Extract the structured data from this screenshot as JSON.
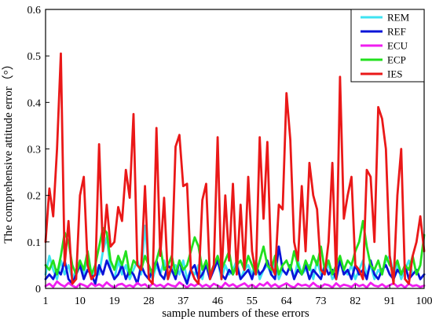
{
  "chart_data": {
    "type": "line",
    "title": "",
    "xlabel": "sample numbers of these errors",
    "ylabel": "The comprehensive attitude error（°）",
    "xlim": [
      1,
      100
    ],
    "ylim": [
      0,
      0.6
    ],
    "grid": false,
    "legend_position": "top-right",
    "x_ticks": [
      "1",
      "10",
      "19",
      "28",
      "37",
      "46",
      "55",
      "64",
      "73",
      "82",
      "91",
      "100"
    ],
    "y_ticks": [
      "0",
      "0.1",
      "0.2",
      "0.3",
      "0.4",
      "0.5",
      "0.6"
    ],
    "x": [
      1,
      2,
      3,
      4,
      5,
      6,
      7,
      8,
      9,
      10,
      11,
      12,
      13,
      14,
      15,
      16,
      17,
      18,
      19,
      20,
      21,
      22,
      23,
      24,
      25,
      26,
      27,
      28,
      29,
      30,
      31,
      32,
      33,
      34,
      35,
      36,
      37,
      38,
      39,
      40,
      41,
      42,
      43,
      44,
      45,
      46,
      47,
      48,
      49,
      50,
      51,
      52,
      53,
      54,
      55,
      56,
      57,
      58,
      59,
      60,
      61,
      62,
      63,
      64,
      65,
      66,
      67,
      68,
      69,
      70,
      71,
      72,
      73,
      74,
      75,
      76,
      77,
      78,
      79,
      80,
      81,
      82,
      83,
      84,
      85,
      86,
      87,
      88,
      89,
      90,
      91,
      92,
      93,
      94,
      95,
      96,
      97,
      98,
      99,
      100
    ],
    "series": [
      {
        "name": "REM",
        "color": "#3fe3f2",
        "values": [
          0.03,
          0.07,
          0.04,
          0.02,
          0.06,
          0.03,
          0.05,
          0.02,
          0.04,
          0.06,
          0.03,
          0.07,
          0.02,
          0.05,
          0.03,
          0.08,
          0.11,
          0.04,
          0.02,
          0.06,
          0.03,
          0.05,
          0.02,
          0.04,
          0.06,
          0.03,
          0.135,
          0.04,
          0.02,
          0.05,
          0.03,
          0.06,
          0.02,
          0.04,
          0.05,
          0.03,
          0.06,
          0.02,
          0.04,
          0.03,
          0.05,
          0.02,
          0.06,
          0.03,
          0.04,
          0.06,
          0.02,
          0.05,
          0.03,
          0.04,
          0.06,
          0.02,
          0.04,
          0.05,
          0.03,
          0.06,
          0.02,
          0.04,
          0.05,
          0.03,
          0.06,
          0.02,
          0.04,
          0.03,
          0.05,
          0.02,
          0.06,
          0.03,
          0.04,
          0.05,
          0.02,
          0.06,
          0.03,
          0.04,
          0.05,
          0.02,
          0.03,
          0.06,
          0.04,
          0.03,
          0.05,
          0.02,
          0.04,
          0.06,
          0.03,
          0.05,
          0.02,
          0.04,
          0.03,
          0.06,
          0.07,
          0.03,
          0.05,
          0.02,
          0.04,
          0.06,
          0.03,
          0.04,
          0.02,
          0.03
        ]
      },
      {
        "name": "REF",
        "color": "#0a14d8",
        "values": [
          0.02,
          0.03,
          0.02,
          0.04,
          0.03,
          0.06,
          0.02,
          0.01,
          0.03,
          0.05,
          0.02,
          0.04,
          0.03,
          0.01,
          0.05,
          0.03,
          0.06,
          0.04,
          0.02,
          0.03,
          0.05,
          0.02,
          0.04,
          0.03,
          0.01,
          0.05,
          0.03,
          0.02,
          0.04,
          0.06,
          0.03,
          0.02,
          0.05,
          0.04,
          0.02,
          0.06,
          0.03,
          0.01,
          0.04,
          0.05,
          0.02,
          0.03,
          0.05,
          0.02,
          0.04,
          0.06,
          0.03,
          0.02,
          0.04,
          0.03,
          0.05,
          0.02,
          0.03,
          0.04,
          0.02,
          0.05,
          0.03,
          0.04,
          0.06,
          0.03,
          0.02,
          0.09,
          0.04,
          0.03,
          0.05,
          0.02,
          0.04,
          0.03,
          0.05,
          0.02,
          0.04,
          0.03,
          0.02,
          0.05,
          0.03,
          0.04,
          0.02,
          0.06,
          0.03,
          0.04,
          0.02,
          0.05,
          0.03,
          0.04,
          0.02,
          0.06,
          0.03,
          0.02,
          0.04,
          0.05,
          0.03,
          0.02,
          0.04,
          0.03,
          0.05,
          0.02,
          0.03,
          0.04,
          0.02,
          0.03
        ]
      },
      {
        "name": "ECU",
        "color": "#f01ef0",
        "values": [
          0.005,
          0.01,
          0.003,
          0.015,
          0.008,
          0.004,
          0.012,
          0.006,
          0.002,
          0.01,
          0.007,
          0.003,
          0.011,
          0.005,
          0.009,
          0.004,
          0.013,
          0.006,
          0.002,
          0.008,
          0.01,
          0.004,
          0.007,
          0.003,
          0.012,
          0.006,
          0.009,
          0.002,
          0.011,
          0.005,
          0.008,
          0.003,
          0.01,
          0.006,
          0.004,
          0.013,
          0.007,
          0.002,
          0.009,
          0.005,
          0.011,
          0.004,
          0.008,
          0.003,
          0.01,
          0.006,
          0.002,
          0.012,
          0.005,
          0.009,
          0.003,
          0.007,
          0.011,
          0.004,
          0.008,
          0.002,
          0.01,
          0.006,
          0.013,
          0.004,
          0.009,
          0.003,
          0.007,
          0.011,
          0.005,
          0.002,
          0.01,
          0.006,
          0.008,
          0.004,
          0.012,
          0.005,
          0.003,
          0.009,
          0.007,
          0.002,
          0.011,
          0.004,
          0.008,
          0.006,
          0.003,
          0.01,
          0.005,
          0.008,
          0.002,
          0.012,
          0.006,
          0.004,
          0.009,
          0.003,
          0.007,
          0.011,
          0.004,
          0.008,
          0.002,
          0.01,
          0.005,
          0.007,
          0.003,
          0.006
        ]
      },
      {
        "name": "ECP",
        "color": "#22e01e",
        "values": [
          0.05,
          0.04,
          0.06,
          0.03,
          0.07,
          0.12,
          0.1,
          0.05,
          0.03,
          0.06,
          0.04,
          0.08,
          0.03,
          0.05,
          0.09,
          0.13,
          0.12,
          0.06,
          0.04,
          0.07,
          0.05,
          0.08,
          0.03,
          0.06,
          0.05,
          0.04,
          0.07,
          0.05,
          0.03,
          0.06,
          0.09,
          0.04,
          0.05,
          0.07,
          0.03,
          0.06,
          0.04,
          0.05,
          0.08,
          0.11,
          0.09,
          0.04,
          0.06,
          0.03,
          0.05,
          0.07,
          0.04,
          0.06,
          0.08,
          0.03,
          0.05,
          0.06,
          0.04,
          0.07,
          0.05,
          0.03,
          0.06,
          0.09,
          0.05,
          0.04,
          0.07,
          0.03,
          0.05,
          0.06,
          0.04,
          0.08,
          0.05,
          0.03,
          0.06,
          0.04,
          0.07,
          0.05,
          0.09,
          0.04,
          0.06,
          0.03,
          0.05,
          0.07,
          0.04,
          0.06,
          0.05,
          0.08,
          0.1,
          0.145,
          0.09,
          0.05,
          0.04,
          0.06,
          0.03,
          0.07,
          0.05,
          0.04,
          0.06,
          0.03,
          0.05,
          0.04,
          0.07,
          0.03,
          0.05,
          0.115
        ]
      },
      {
        "name": "IES",
        "color": "#ea1818",
        "values": [
          0.1,
          0.215,
          0.155,
          0.3,
          0.505,
          0.05,
          0.145,
          0.01,
          0.02,
          0.2,
          0.24,
          0.05,
          0.02,
          0.03,
          0.31,
          0.08,
          0.18,
          0.09,
          0.1,
          0.175,
          0.145,
          0.255,
          0.195,
          0.375,
          0.05,
          0.04,
          0.22,
          0.02,
          0.01,
          0.345,
          0.07,
          0.195,
          0.02,
          0.05,
          0.305,
          0.33,
          0.22,
          0.225,
          0.04,
          0.02,
          0.01,
          0.19,
          0.225,
          0.02,
          0.05,
          0.325,
          0.02,
          0.2,
          0.06,
          0.225,
          0.03,
          0.18,
          0.04,
          0.24,
          0.08,
          0.03,
          0.325,
          0.15,
          0.315,
          0.05,
          0.03,
          0.18,
          0.17,
          0.42,
          0.32,
          0.1,
          0.06,
          0.22,
          0.08,
          0.27,
          0.2,
          0.17,
          0.04,
          0.03,
          0.1,
          0.27,
          0.02,
          0.455,
          0.15,
          0.2,
          0.24,
          0.05,
          0.04,
          0.02,
          0.255,
          0.24,
          0.1,
          0.39,
          0.365,
          0.3,
          0.07,
          0.01,
          0.2,
          0.3,
          0.02,
          0.01,
          0.07,
          0.1,
          0.155,
          0.08
        ]
      }
    ]
  }
}
